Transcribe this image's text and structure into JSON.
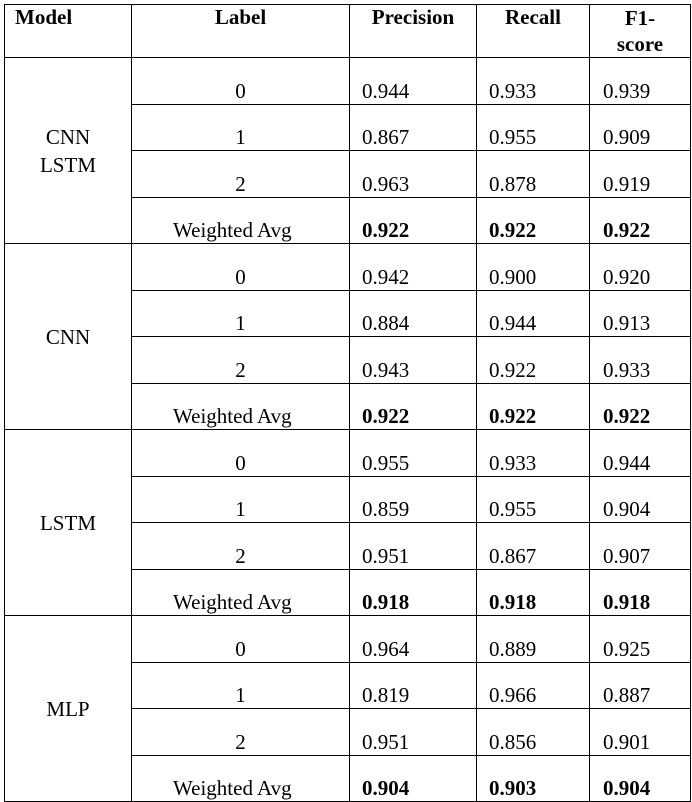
{
  "table": {
    "headers": {
      "model": "Model",
      "label": "Label",
      "precision": "Precision",
      "recall": "Recall",
      "f1_line1": "F1-",
      "f1_line2": "score"
    },
    "groups": [
      {
        "model_lines": [
          "CNN",
          "LSTM"
        ],
        "rows": [
          {
            "label": "0",
            "precision": "0.944",
            "recall": "0.933",
            "f1": "0.939"
          },
          {
            "label": "1",
            "precision": "0.867",
            "recall": "0.955",
            "f1": "0.909"
          },
          {
            "label": "2",
            "precision": "0.963",
            "recall": "0.878",
            "f1": "0.919"
          },
          {
            "label": "Weighted Avg",
            "precision": "0.922",
            "recall": "0.922",
            "f1": "0.922"
          }
        ]
      },
      {
        "model_lines": [
          "CNN"
        ],
        "rows": [
          {
            "label": "0",
            "precision": "0.942",
            "recall": "0.900",
            "f1": "0.920"
          },
          {
            "label": "1",
            "precision": "0.884",
            "recall": "0.944",
            "f1": "0.913"
          },
          {
            "label": "2",
            "precision": "0.943",
            "recall": "0.922",
            "f1": "0.933"
          },
          {
            "label": "Weighted Avg",
            "precision": "0.922",
            "recall": "0.922",
            "f1": "0.922"
          }
        ]
      },
      {
        "model_lines": [
          "LSTM"
        ],
        "rows": [
          {
            "label": "0",
            "precision": "0.955",
            "recall": "0.933",
            "f1": "0.944"
          },
          {
            "label": "1",
            "precision": "0.859",
            "recall": "0.955",
            "f1": "0.904"
          },
          {
            "label": "2",
            "precision": "0.951",
            "recall": "0.867",
            "f1": "0.907"
          },
          {
            "label": "Weighted Avg",
            "precision": "0.918",
            "recall": "0.918",
            "f1": "0.918"
          }
        ]
      },
      {
        "model_lines": [
          "MLP"
        ],
        "rows": [
          {
            "label": "0",
            "precision": "0.964",
            "recall": "0.889",
            "f1": "0.925"
          },
          {
            "label": "1",
            "precision": "0.819",
            "recall": "0.966",
            "f1": "0.887"
          },
          {
            "label": "2",
            "precision": "0.951",
            "recall": "0.856",
            "f1": "0.901"
          },
          {
            "label": "Weighted Avg",
            "precision": "0.904",
            "recall": "0.903",
            "f1": "0.904"
          }
        ]
      }
    ]
  }
}
